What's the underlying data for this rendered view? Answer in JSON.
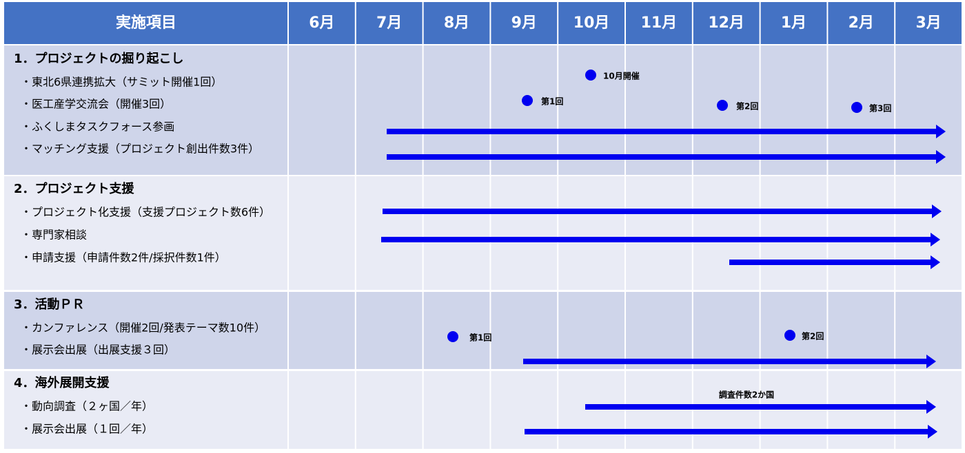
{
  "header": {
    "item": "実施項目",
    "months": [
      "6月",
      "7月",
      "8月",
      "9月",
      "10月",
      "11月",
      "12月",
      "1月",
      "2月",
      "3月"
    ]
  },
  "sections": [
    {
      "title": "1．プロジェクトの掘り起こし",
      "items": [
        "・東北6県連携拡大（サミット開催1回）",
        "・医工産学交流会（開催3回）",
        "・ふくしまタスクフォース参画",
        "・マッチング支援（プロジェクト創出件数3件）"
      ],
      "annotations": [
        "10月開催",
        "第1回",
        "第2回",
        "第3回"
      ]
    },
    {
      "title": "2．プロジェクト支援",
      "items": [
        "・プロジェクト化支援（支援プロジェクト数6件）",
        "・専門家相談",
        "・申請支援（申請件数2件/採択件数1件）"
      ],
      "annotations": []
    },
    {
      "title": "3．活動ＰＲ",
      "items": [
        "・カンファレンス（開催2回/発表テーマ数10件）",
        "・展示会出展（出展支援３回）"
      ],
      "annotations": [
        "第1回",
        "第2回"
      ]
    },
    {
      "title": "4．海外展開支援",
      "items": [
        "・動向調査（２ヶ国／年）",
        "・展示会出展（１回／年）"
      ],
      "annotations": [
        "調査件数2か国"
      ]
    }
  ]
}
